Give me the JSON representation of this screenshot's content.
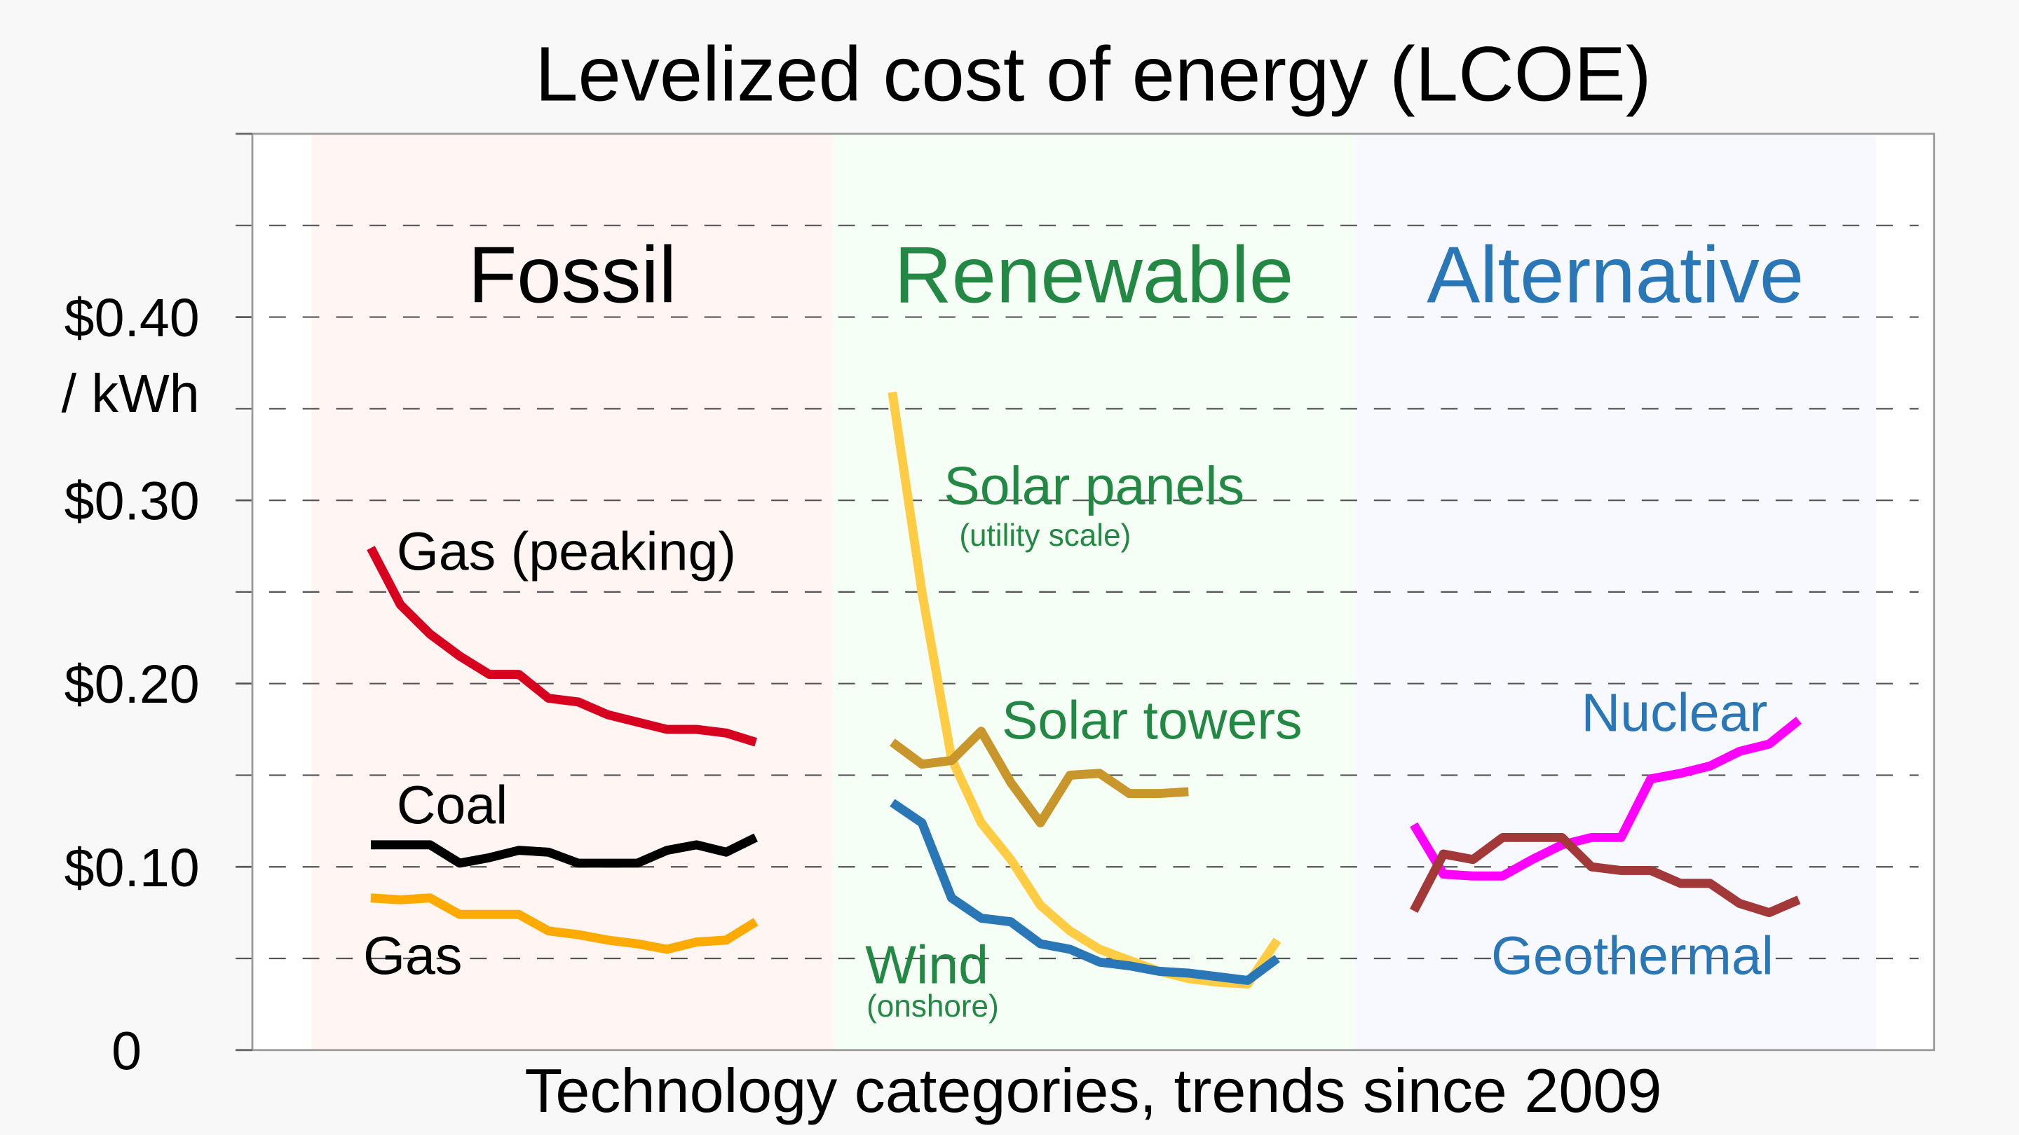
{
  "chart_data": {
    "type": "line",
    "title": "Levelized cost of energy (LCOE)",
    "xlabel": "Technology categories, trends since 2009",
    "ylabel": "/ kWh",
    "ylim": [
      0,
      0.5
    ],
    "yticks": [
      0,
      {
        "value": 0.1,
        "label": "$0.10"
      },
      {
        "value": 0.2,
        "label": "$0.20"
      },
      {
        "value": 0.3,
        "label": "$0.30"
      },
      {
        "value": 0.4,
        "label": "$0.40"
      }
    ],
    "grid": true,
    "grid_ticks": [
      0.05,
      0.1,
      0.15,
      0.2,
      0.25,
      0.3,
      0.35,
      0.4,
      0.45
    ],
    "panels": [
      {
        "name": "Fossil",
        "color": "#000000",
        "background": "#fff5f3",
        "series": [
          {
            "name": "Gas (peaking)",
            "color": "#d7001f",
            "values": [
              0.274,
              0.243,
              0.227,
              0.215,
              0.205,
              0.205,
              0.192,
              0.19,
              0.183,
              0.179,
              0.175,
              0.175,
              0.173,
              0.168
            ]
          },
          {
            "name": "Coal",
            "color": "#000000",
            "values": [
              0.112,
              0.112,
              0.112,
              0.102,
              0.105,
              0.109,
              0.108,
              0.102,
              0.102,
              0.102,
              0.109,
              0.112,
              0.108,
              0.116
            ]
          },
          {
            "name": "Gas",
            "color": "#ffaa00",
            "values": [
              0.083,
              0.082,
              0.083,
              0.074,
              0.074,
              0.074,
              0.065,
              0.063,
              0.06,
              0.058,
              0.055,
              0.059,
              0.06,
              0.07
            ]
          }
        ]
      },
      {
        "name": "Renewable",
        "color": "#228844",
        "background": "#f5fff5",
        "series": [
          {
            "name": "Solar panels",
            "note": "(utility scale)",
            "color": "#ffcc44",
            "values": [
              0.359,
              0.25,
              0.159,
              0.124,
              0.104,
              0.079,
              0.065,
              0.055,
              0.049,
              0.043,
              0.039,
              0.037,
              0.036,
              0.06
            ]
          },
          {
            "name": "Solar towers",
            "color": "#c8962a",
            "values": [
              0.168,
              0.156,
              0.158,
              0.174,
              0.146,
              0.124,
              0.15,
              0.151,
              0.14,
              0.14,
              0.141,
              null,
              null,
              null
            ]
          },
          {
            "name": "Wind",
            "note": "(onshore)",
            "color": "#2a77b8",
            "values": [
              0.135,
              0.124,
              0.083,
              0.072,
              0.07,
              0.058,
              0.055,
              0.048,
              0.046,
              0.043,
              0.042,
              0.04,
              0.038,
              0.05
            ]
          }
        ]
      },
      {
        "name": "Alternative",
        "color": "#2a77b8",
        "background": "#f8f8ff",
        "series": [
          {
            "name": "Nuclear",
            "color": "#ff00ff",
            "values": [
              0.123,
              0.096,
              0.095,
              0.095,
              0.104,
              0.112,
              0.116,
              0.116,
              0.148,
              0.151,
              0.155,
              0.163,
              0.167,
              0.18
            ]
          },
          {
            "name": "Geothermal",
            "color": "#a33838",
            "values": [
              0.076,
              0.107,
              0.104,
              0.116,
              0.116,
              0.116,
              0.1,
              0.098,
              0.098,
              0.091,
              0.091,
              0.08,
              0.075,
              0.082
            ]
          }
        ]
      }
    ]
  }
}
